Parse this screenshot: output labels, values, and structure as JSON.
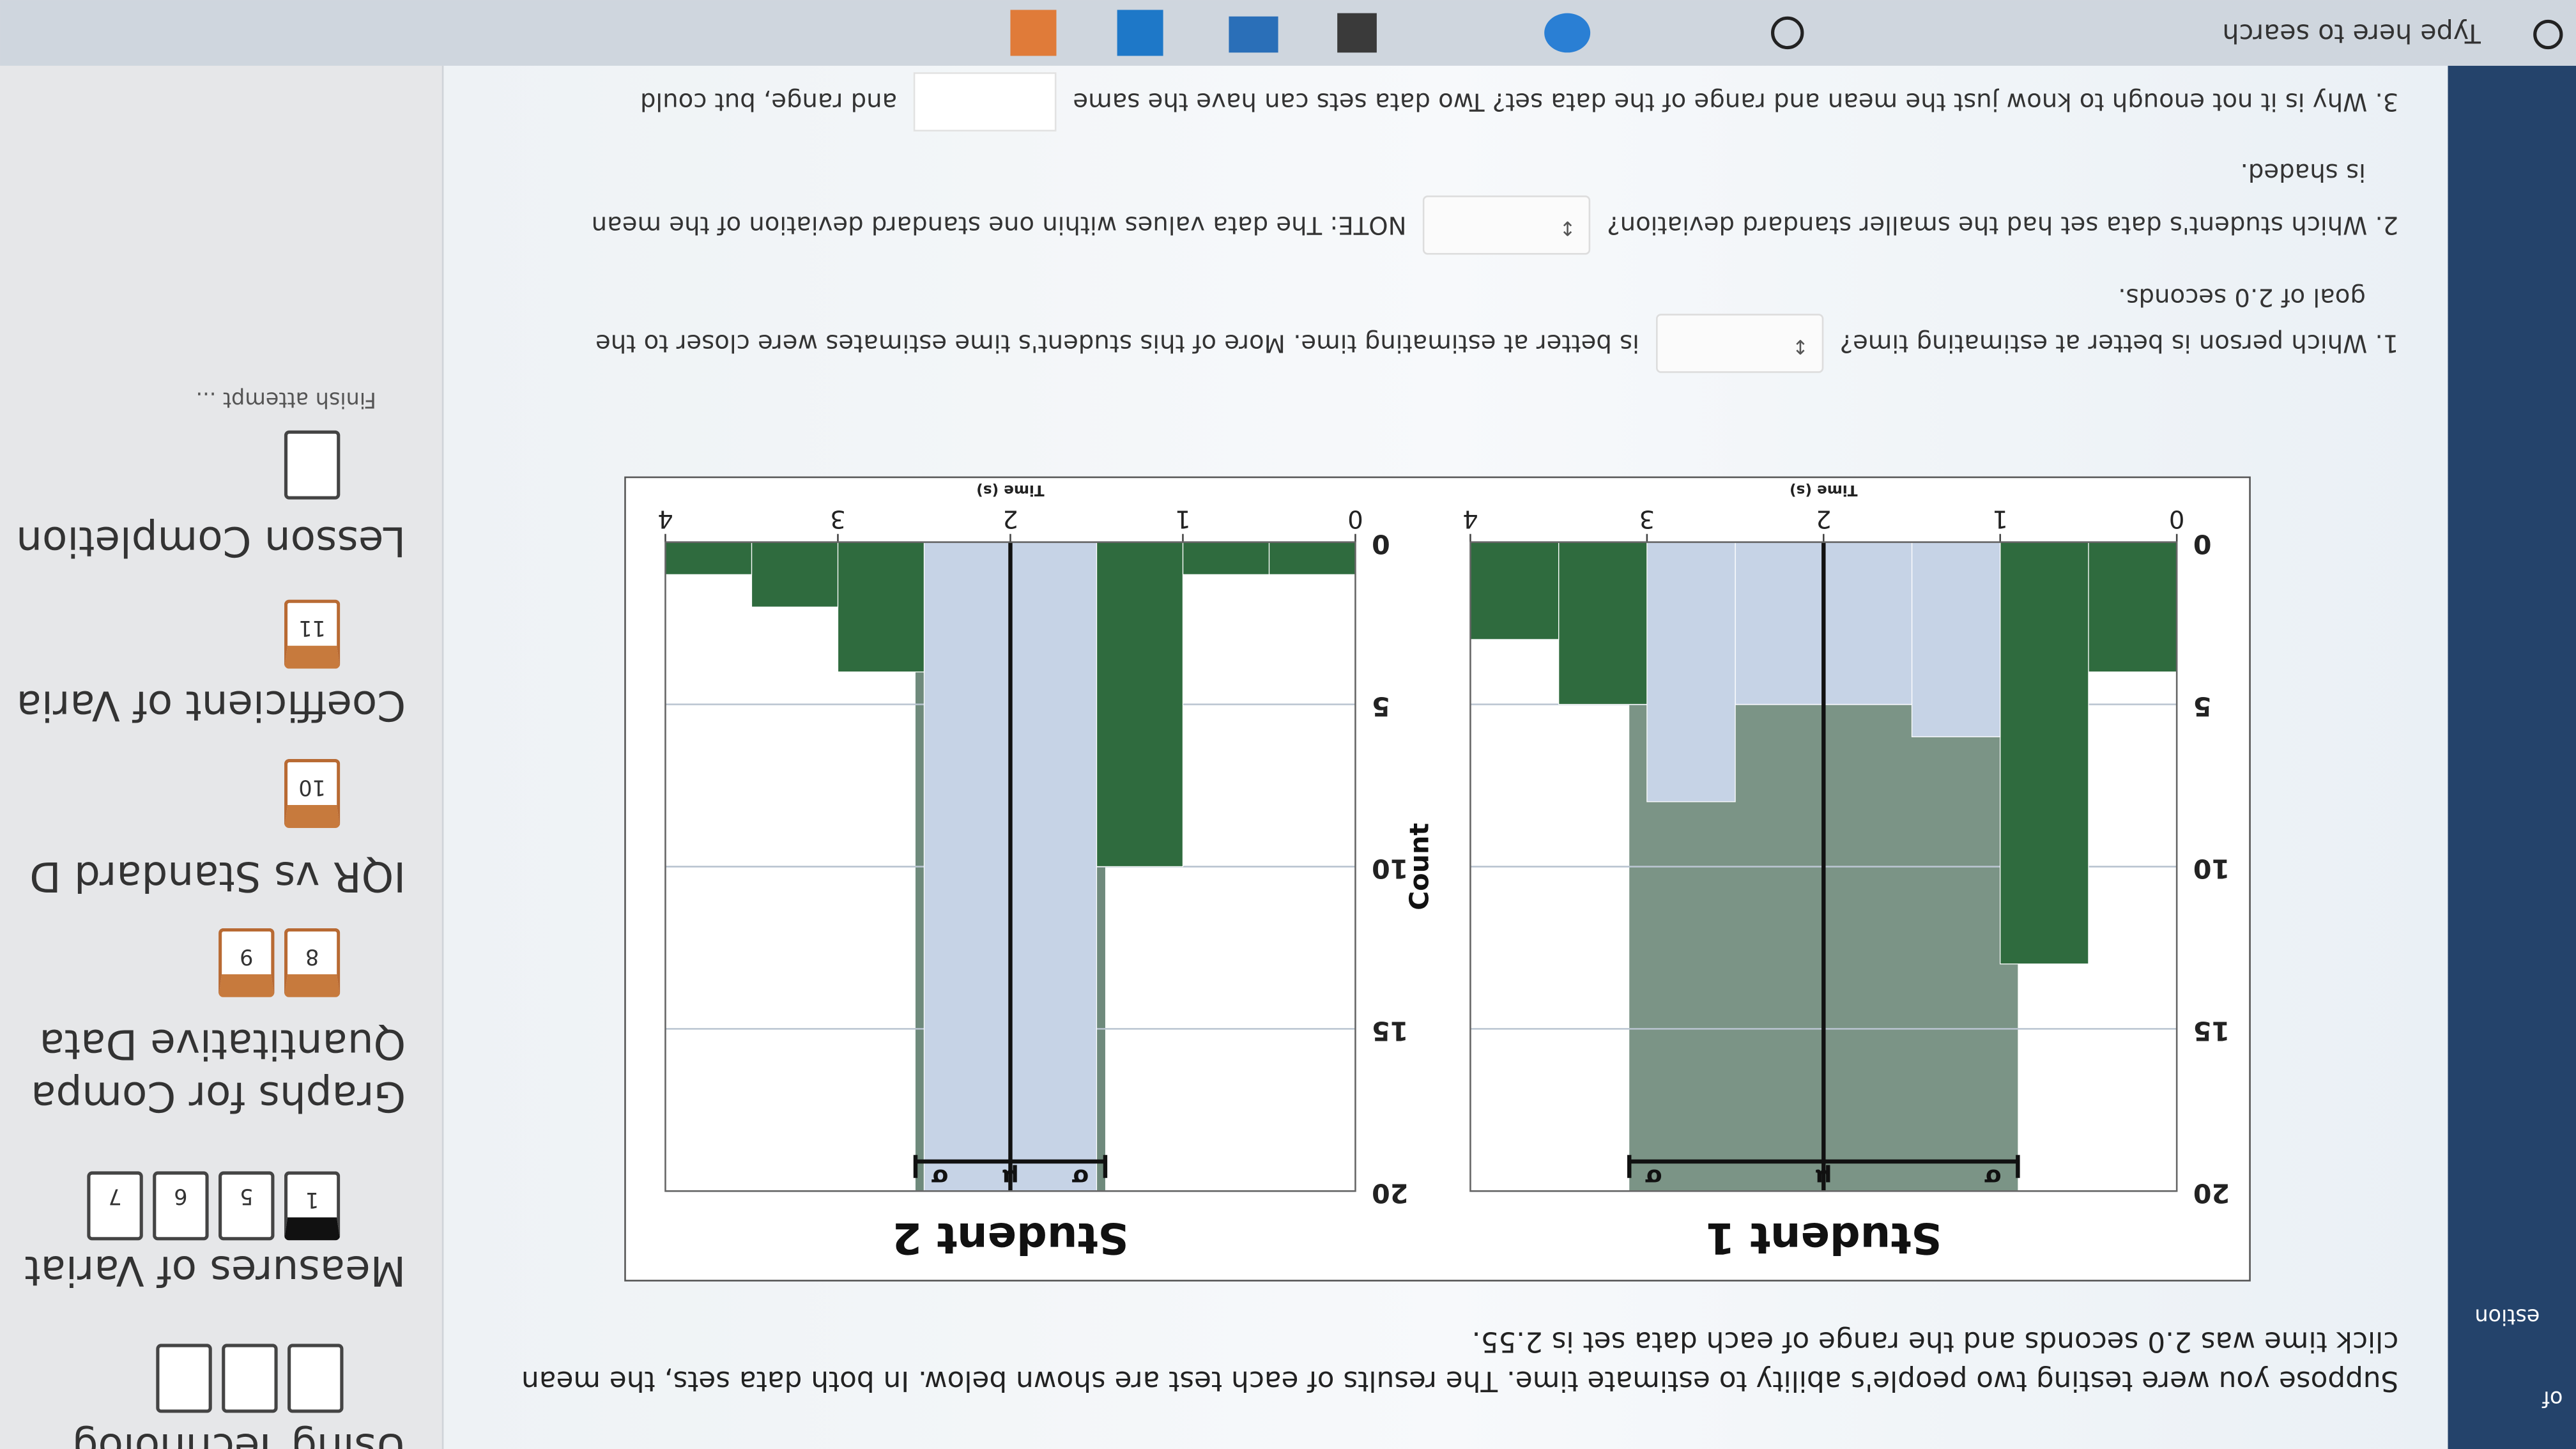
{
  "nav": {
    "of_label": "of",
    "question_label": "estion"
  },
  "intro": "Suppose you were testing two people's ability to estimate time. The results of each test are shown below. In both data sets, the mean click time was 2.0 seconds and the range of each data set is 2.55.",
  "chart_data": [
    {
      "type": "histogram",
      "title": "Student 1",
      "xlabel": "Time (s)",
      "bins": [
        0,
        0.5,
        1,
        1.5,
        2,
        2.5,
        3,
        3.5,
        4
      ],
      "values": [
        4,
        13,
        6,
        5,
        5,
        8,
        5,
        3
      ],
      "color": "#2f6b3e",
      "inner_color": "#c6d3e6",
      "shade_color": "#7b9486",
      "xlim": [
        0,
        4
      ],
      "ylim": [
        0,
        20
      ],
      "xticks": [
        0,
        1,
        2,
        3,
        4
      ],
      "yticks": [
        0,
        5,
        10,
        15,
        20
      ],
      "grid": true,
      "mean": 2.0,
      "sd": 1.1,
      "mean_label": "μ",
      "sd_label": "σ"
    },
    {
      "type": "histogram",
      "title": "Student 2",
      "xlabel": "Time (s)",
      "ylabel": "Count",
      "bins": [
        0,
        0.5,
        1,
        1.5,
        2,
        2.5,
        3,
        3.5,
        4
      ],
      "values": [
        1,
        1,
        10,
        20,
        20,
        4,
        2,
        1
      ],
      "color": "#2f6b3e",
      "inner_color": "#c6d3e6",
      "shade_color": "#6f8a7c",
      "xlim": [
        0,
        4
      ],
      "ylim": [
        0,
        20
      ],
      "xticks": [
        0,
        1,
        2,
        3,
        4
      ],
      "yticks": [
        0,
        5,
        10,
        15,
        20
      ],
      "grid": true,
      "mean": 2.0,
      "sd": 0.55,
      "mean_label": "μ",
      "sd_label": "σ"
    }
  ],
  "questions": [
    {
      "prompt": "1. Which person is better at estimating time?",
      "after": "is better at estimating time. More of this student's time estimates were closer to the",
      "line2": "goal of 2.0 seconds."
    },
    {
      "prompt": "2. Which student's data set had the smaller standard deviation?",
      "after": "NOTE: The data values within one standard deviation of the mean",
      "line2": "is shaded."
    },
    {
      "prompt": "3. Why is it not enough to know just the mean and range of the data set? Two data sets can have the same",
      "after": "and range, but could"
    }
  ],
  "sidebar": {
    "top": "Using Technolog",
    "sections": [
      {
        "title": "Measures of Variat",
        "boxes": [
          "1",
          "5",
          "6",
          "7"
        ]
      },
      {
        "title": "Graphs for Compa",
        "subtitle": "Quantitative Data",
        "boxes": [
          "8",
          "9"
        ]
      },
      {
        "title": "IQR vs Standard D",
        "boxes": [
          "10"
        ]
      },
      {
        "title": "Coefficient of Varia",
        "boxes": [
          "11"
        ]
      },
      {
        "title": "Lesson Completion"
      }
    ],
    "finish": "Finish attempt ..."
  },
  "taskbar": {
    "search": "Type here to search"
  }
}
